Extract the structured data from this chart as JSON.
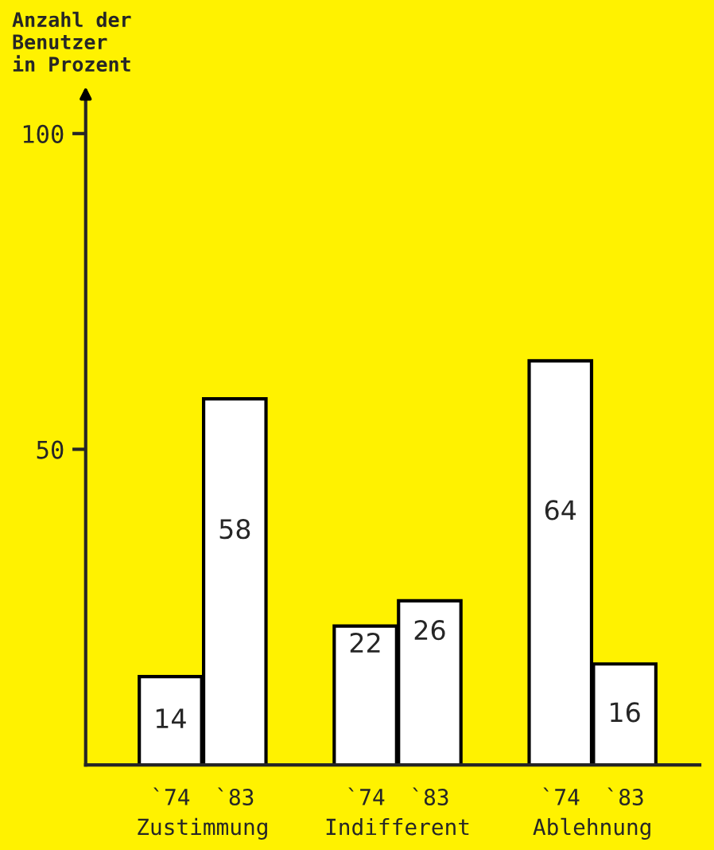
{
  "chart_data": {
    "type": "bar",
    "ylabel": "Anzahl der\nBenutzer\nin Prozent",
    "categories": [
      "Zustimmung",
      "Indifferent",
      "Ablehnung"
    ],
    "series": [
      {
        "name": "`74",
        "color": "#ffffff",
        "values": [
          14,
          22,
          64
        ]
      },
      {
        "name": "`83",
        "color": "#ffffff",
        "values": [
          58,
          26,
          16
        ]
      }
    ],
    "ylim": [
      0,
      105
    ],
    "yticks": [
      50,
      100
    ],
    "data_labels": true,
    "grid": false,
    "legend": false
  }
}
